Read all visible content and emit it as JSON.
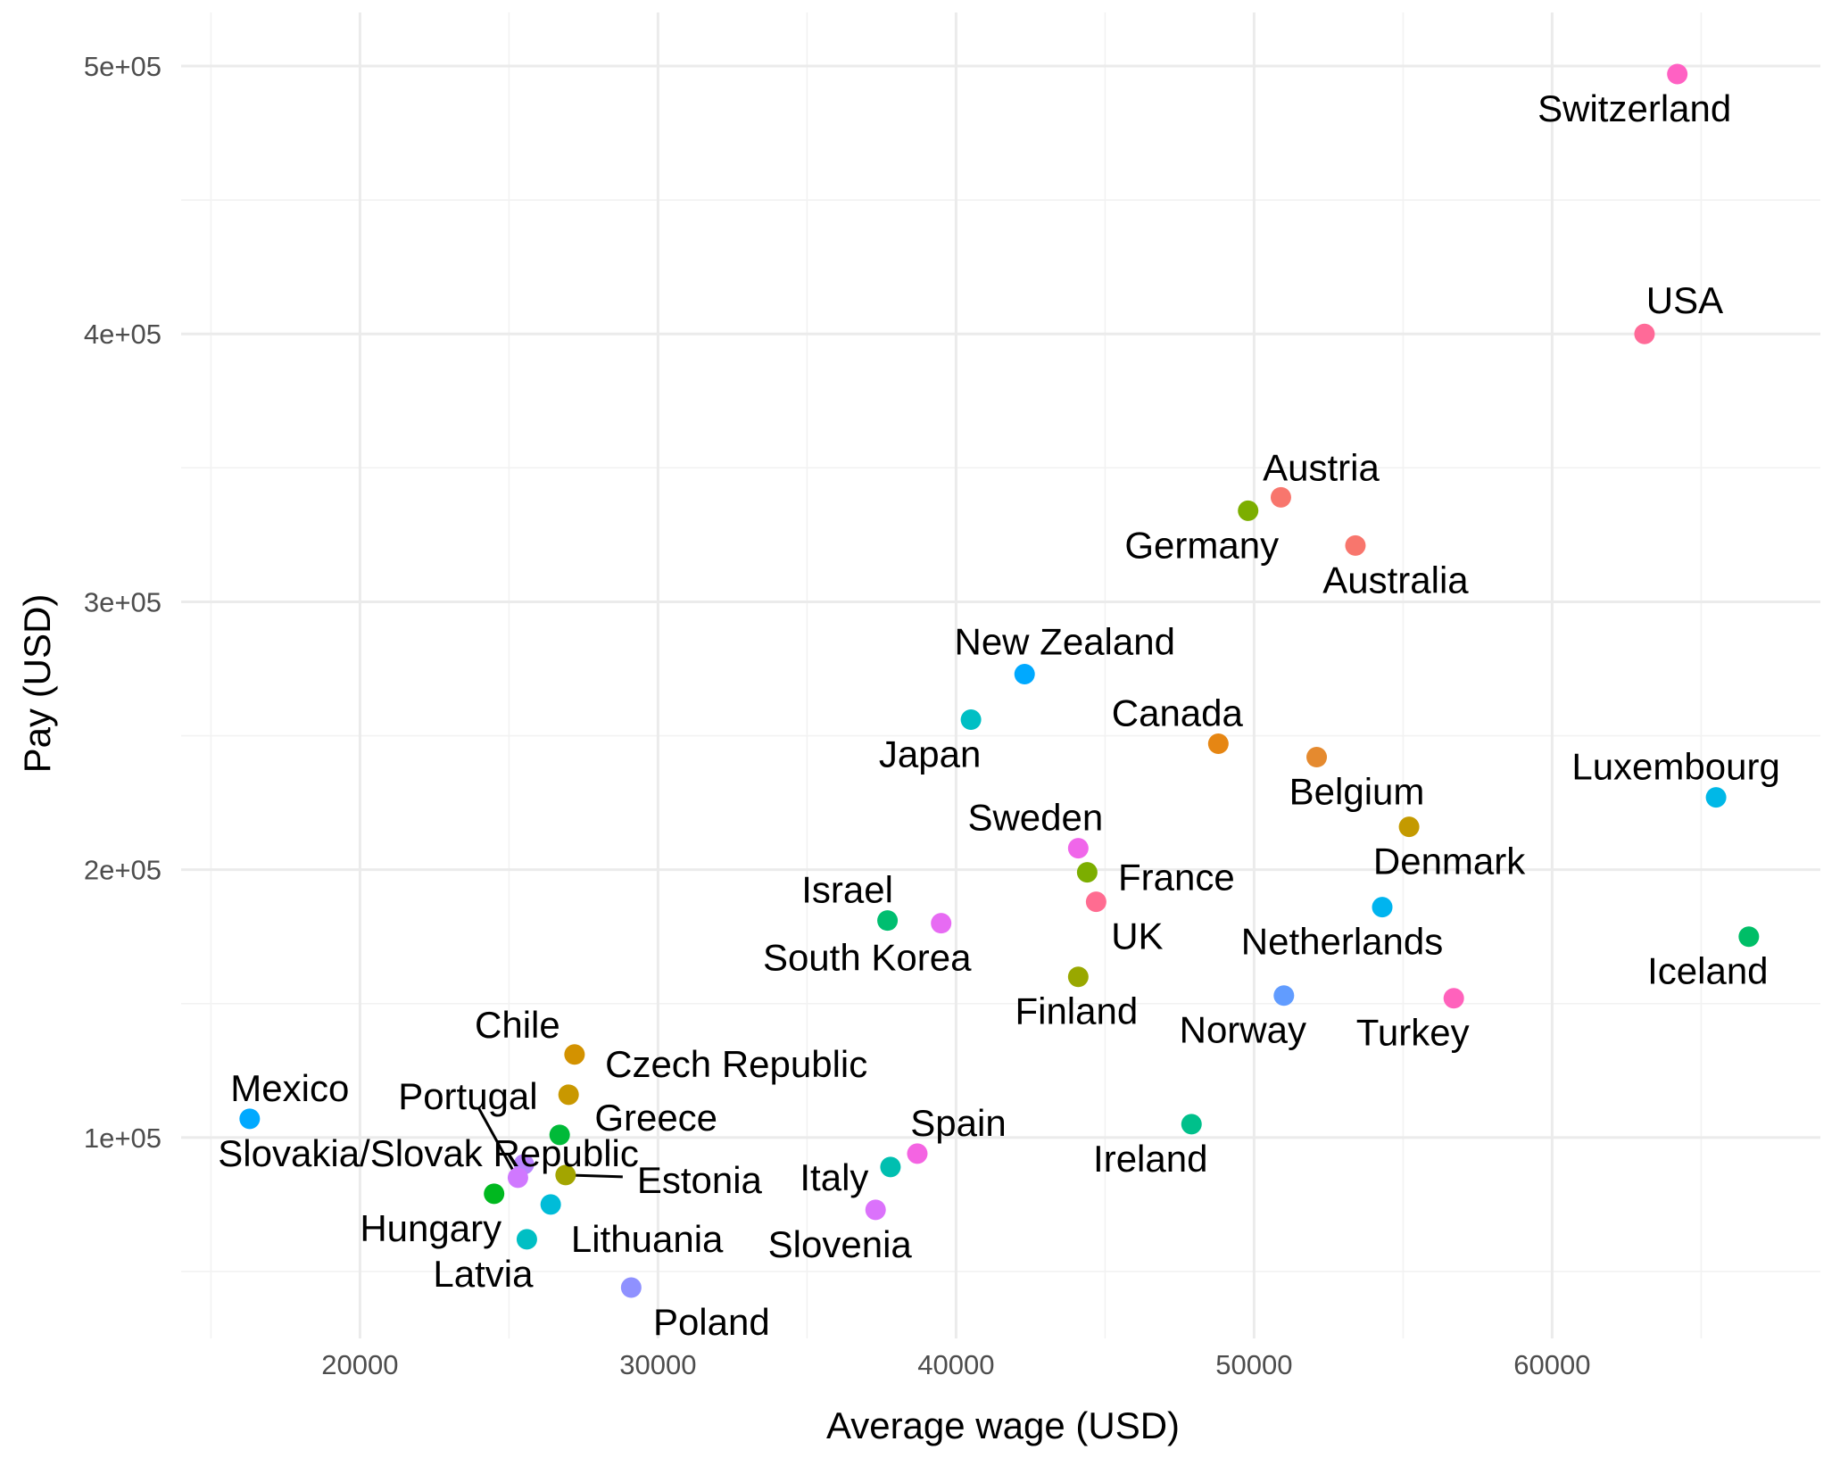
{
  "chart_data": {
    "type": "scatter",
    "xlabel": "Average wage (USD)",
    "ylabel": "Pay (USD)",
    "xlim": [
      14000,
      69000
    ],
    "ylim": [
      25000,
      520000
    ],
    "x_ticks": [
      20000,
      30000,
      40000,
      50000,
      60000
    ],
    "x_tick_labels": [
      "20000",
      "30000",
      "40000",
      "50000",
      "60000"
    ],
    "y_ticks": [
      100000,
      200000,
      300000,
      400000,
      500000
    ],
    "y_tick_labels": [
      "1e+05",
      "2e+05",
      "3e+05",
      "4e+05",
      "5e+05"
    ],
    "grid": true,
    "legend": "none",
    "points": [
      {
        "label": "Switzerland",
        "x": 64200,
        "y": 497000,
        "color": "#FF61C3"
      },
      {
        "label": "USA",
        "x": 63100,
        "y": 400000,
        "color": "#FF6A98"
      },
      {
        "label": "Austria",
        "x": 50900,
        "y": 339000,
        "color": "#F8766D"
      },
      {
        "label": "Germany",
        "x": 49800,
        "y": 334000,
        "color": "#7CAE00"
      },
      {
        "label": "Australia",
        "x": 53400,
        "y": 321000,
        "color": "#F8766D"
      },
      {
        "label": "New Zealand",
        "x": 42300,
        "y": 273000,
        "color": "#00A9FF"
      },
      {
        "label": "Japan",
        "x": 40500,
        "y": 256000,
        "color": "#00BFC4"
      },
      {
        "label": "Canada",
        "x": 48800,
        "y": 247000,
        "color": "#E68613"
      },
      {
        "label": "Belgium",
        "x": 52100,
        "y": 242000,
        "color": "#E58A2F"
      },
      {
        "label": "Luxembourg",
        "x": 65500,
        "y": 227000,
        "color": "#00B8E7"
      },
      {
        "label": "Denmark",
        "x": 55200,
        "y": 216000,
        "color": "#C49A00"
      },
      {
        "label": "Sweden",
        "x": 44100,
        "y": 208000,
        "color": "#F066EA"
      },
      {
        "label": "France",
        "x": 44400,
        "y": 199000,
        "color": "#7CAE00"
      },
      {
        "label": "UK",
        "x": 44700,
        "y": 188000,
        "color": "#FF6C91"
      },
      {
        "label": "Netherlands",
        "x": 54300,
        "y": 186000,
        "color": "#00B4EF"
      },
      {
        "label": "Israel",
        "x": 37700,
        "y": 181000,
        "color": "#00BE70"
      },
      {
        "label": "South Korea",
        "x": 39500,
        "y": 180000,
        "color": "#E76BF3"
      },
      {
        "label": "Iceland",
        "x": 66600,
        "y": 175000,
        "color": "#00BE67"
      },
      {
        "label": "Finland",
        "x": 44100,
        "y": 160000,
        "color": "#99A800"
      },
      {
        "label": "Norway",
        "x": 51000,
        "y": 153000,
        "color": "#619CFF"
      },
      {
        "label": "Turkey",
        "x": 56700,
        "y": 152000,
        "color": "#FF62BC"
      },
      {
        "label": "Chile",
        "x": 27200,
        "y": 131000,
        "color": "#D39200"
      },
      {
        "label": "Czech Republic",
        "x": 27000,
        "y": 116000,
        "color": "#C99800"
      },
      {
        "label": "Mexico",
        "x": 16300,
        "y": 107000,
        "color": "#00A9FF"
      },
      {
        "label": "Ireland",
        "x": 47900,
        "y": 105000,
        "color": "#00C08B"
      },
      {
        "label": "Greece",
        "x": 26700,
        "y": 101000,
        "color": "#00BA38"
      },
      {
        "label": "Spain",
        "x": 38700,
        "y": 94000,
        "color": "#F464E2"
      },
      {
        "label": "Slovakia/Slovak Republic",
        "x": 25500,
        "y": 90000,
        "color": "#B983FF"
      },
      {
        "label": "Italy",
        "x": 37800,
        "y": 89000,
        "color": "#00BFB0"
      },
      {
        "label": "Estonia",
        "x": 26900,
        "y": 86000,
        "color": "#A3A500"
      },
      {
        "label": "Portugal",
        "x": 25300,
        "y": 85000,
        "color": "#D078FF"
      },
      {
        "label": "Hungary",
        "x": 24500,
        "y": 79000,
        "color": "#00B81F"
      },
      {
        "label": "Lithuania",
        "x": 26400,
        "y": 75000,
        "color": "#00BCD8"
      },
      {
        "label": "Slovenia",
        "x": 37300,
        "y": 73000,
        "color": "#DB72FB"
      },
      {
        "label": "Latvia",
        "x": 25600,
        "y": 62000,
        "color": "#00BFC4"
      },
      {
        "label": "Poland",
        "x": 29100,
        "y": 44000,
        "color": "#8F91FF"
      }
    ]
  }
}
